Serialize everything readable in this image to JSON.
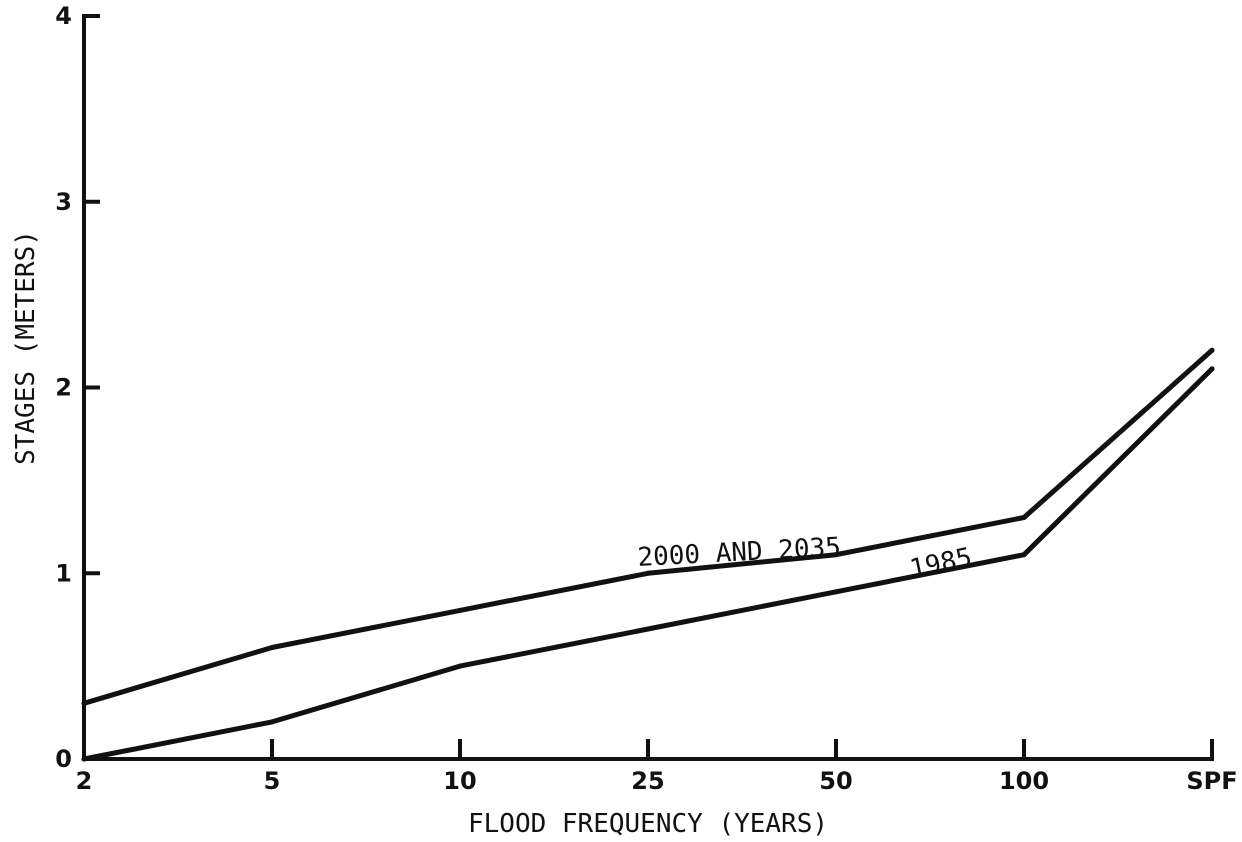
{
  "chart_data": {
    "type": "line",
    "title": "",
    "xlabel": "FLOOD FREQUENCY (YEARS)",
    "ylabel": "STAGES (METERS)",
    "categories": [
      "2",
      "5",
      "10",
      "25",
      "50",
      "100",
      "SPF"
    ],
    "y_ticks": [
      "0",
      "1",
      "2",
      "3",
      "4"
    ],
    "ylim": [
      0,
      4
    ],
    "grid": false,
    "legend": "none (series labelled directly on lines)",
    "series": [
      {
        "name": "2000 AND 2035",
        "values": [
          0.3,
          0.6,
          0.8,
          1.0,
          1.1,
          1.3,
          2.2
        ]
      },
      {
        "name": "1985",
        "values": [
          0.0,
          0.2,
          0.5,
          0.7,
          0.9,
          1.1,
          2.1
        ]
      }
    ],
    "colors": {
      "line": "#111111",
      "background": "#ffffff"
    }
  }
}
